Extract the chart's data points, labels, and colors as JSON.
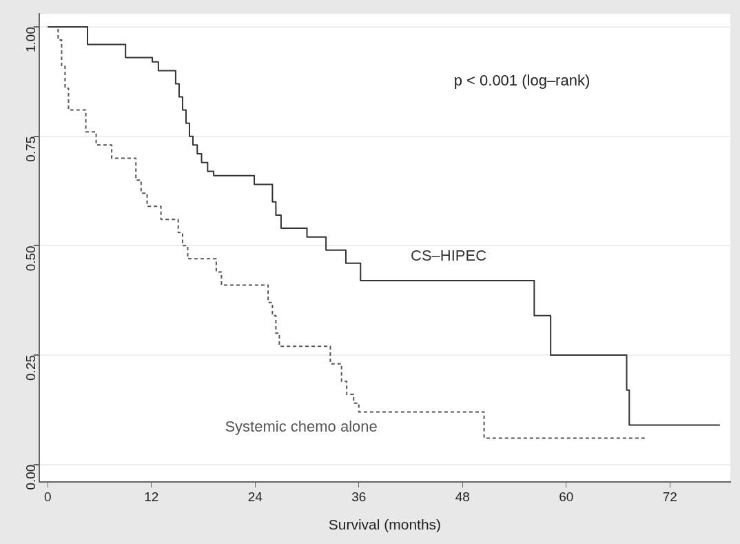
{
  "chart_data": {
    "type": "step",
    "xlabel": "Survival (months)",
    "xlim": [
      -1,
      79
    ],
    "xticks": [
      0,
      12,
      24,
      36,
      48,
      60,
      72
    ],
    "ylim": [
      -0.04,
      1.03
    ],
    "yticks": [
      {
        "value": 0,
        "label": "0.00"
      },
      {
        "value": 0.25,
        "label": "0.25"
      },
      {
        "value": 0.5,
        "label": "0.50"
      },
      {
        "value": 0.75,
        "label": "0.75"
      },
      {
        "value": 1,
        "label": "1.00"
      }
    ],
    "grid": "y",
    "legend": false,
    "marker": "none",
    "annotations": [
      "p < 0.001 (log–rank)"
    ],
    "series": [
      {
        "name": "CS–HIPEC",
        "color": "#333333",
        "line_style": "solid",
        "x": [
          0,
          4.6,
          9.0,
          12.1,
          12.8,
          14.8,
          15.2,
          15.6,
          16.0,
          16.4,
          16.8,
          17.3,
          17.8,
          18.5,
          19.2,
          23.9,
          26.0,
          26.4,
          27.0,
          30.0,
          32.2,
          34.5,
          36.2,
          56.3,
          58.2,
          67.0,
          67.3,
          77.8
        ],
        "values": [
          1.0,
          0.96,
          0.93,
          0.92,
          0.9,
          0.87,
          0.84,
          0.81,
          0.78,
          0.75,
          0.73,
          0.71,
          0.69,
          0.67,
          0.66,
          0.64,
          0.6,
          0.57,
          0.54,
          0.52,
          0.49,
          0.46,
          0.42,
          0.34,
          0.25,
          0.17,
          0.09,
          0.09
        ]
      },
      {
        "name": "Systemic chemo alone",
        "color": "#555555",
        "line_style": "dashed",
        "x": [
          0,
          1.2,
          1.6,
          2.0,
          2.4,
          4.4,
          5.6,
          7.4,
          10.2,
          10.8,
          11.5,
          13.1,
          15.1,
          15.6,
          16.2,
          19.5,
          20.1,
          25.5,
          26.0,
          26.4,
          26.8,
          32.7,
          34.0,
          34.6,
          35.4,
          36.0,
          50.5,
          69.1
        ],
        "values": [
          1.0,
          0.97,
          0.91,
          0.86,
          0.81,
          0.76,
          0.73,
          0.7,
          0.65,
          0.62,
          0.59,
          0.56,
          0.53,
          0.5,
          0.47,
          0.44,
          0.41,
          0.37,
          0.34,
          0.3,
          0.27,
          0.23,
          0.19,
          0.16,
          0.14,
          0.12,
          0.06,
          0.06
        ]
      }
    ]
  }
}
